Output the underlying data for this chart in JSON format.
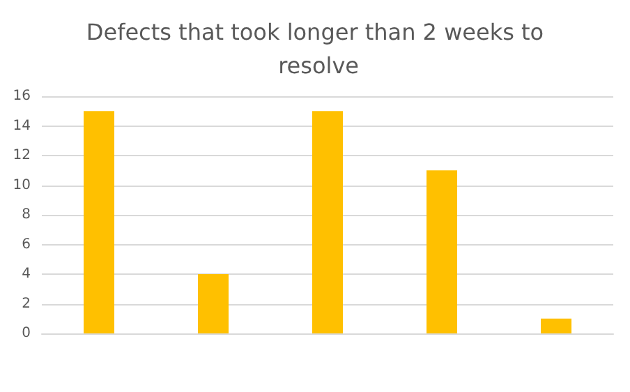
{
  "chart_data": {
    "type": "bar",
    "title": "Defects that took longer than 2 weeks to resolve",
    "categories": [
      null,
      null,
      null,
      null,
      null
    ],
    "values": [
      15,
      4,
      15,
      11,
      1
    ],
    "color": "#ffc000",
    "ylim": [
      0,
      16
    ],
    "yticks": [
      0,
      2,
      4,
      6,
      8,
      10,
      12,
      14,
      16
    ],
    "grid": "y"
  }
}
